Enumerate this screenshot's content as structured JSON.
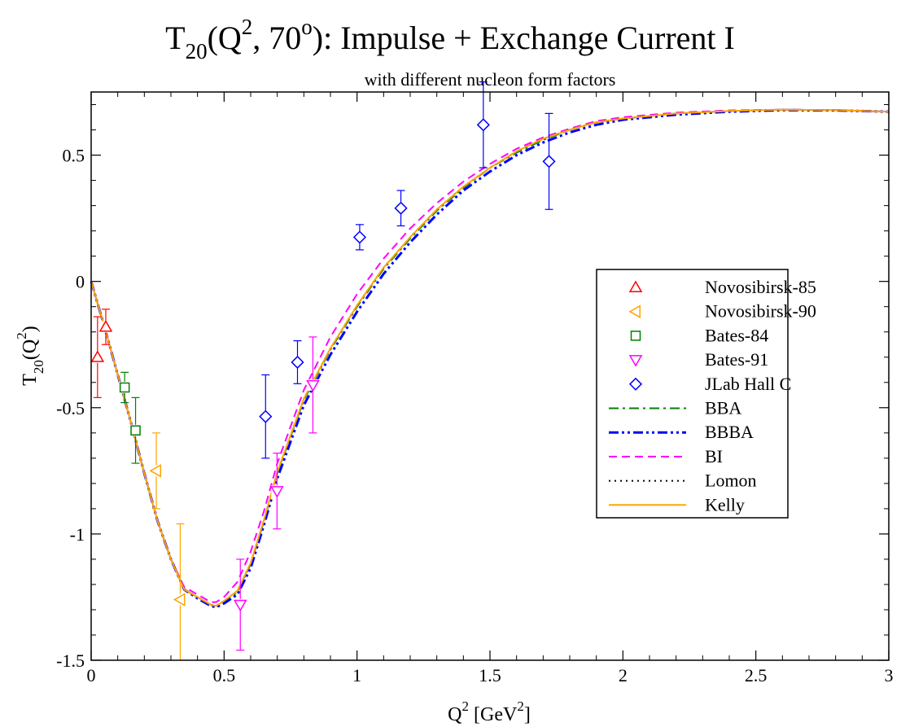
{
  "chart_data": {
    "type": "scatter",
    "title": {
      "main": "T",
      "main_sub": "20",
      "open": "(Q",
      "q_sup": "2",
      "mid": ", 70",
      "deg_sup": "o",
      "rest": "): Impulse + Exchange Current I"
    },
    "subtitle": "with different nucleon form factors",
    "xlabel": {
      "main": "Q",
      "sup": "2",
      "rest": " [GeV",
      "sup2": "2",
      "end": "]"
    },
    "ylabel": {
      "main": "T",
      "sub": "20",
      "rest": "(Q",
      "sup": "2",
      "end": ")"
    },
    "xlim": [
      0,
      3
    ],
    "ylim": [
      -1.5,
      0.75
    ],
    "xticks": [
      "0",
      "0.5",
      "1",
      "1.5",
      "2",
      "2.5",
      "3"
    ],
    "xtick_values": [
      0,
      0.5,
      1,
      1.5,
      2,
      2.5,
      3
    ],
    "yticks": [
      "-1.5",
      "-1",
      "-0.5",
      "0",
      "0.5"
    ],
    "ytick_values": [
      -1.5,
      -1,
      -0.5,
      0,
      0.5
    ],
    "grid": false,
    "legend_position": "right",
    "data_series": [
      {
        "name": "Novosibirsk-85",
        "marker": "triangle-up",
        "color": "#ff0000",
        "points": [
          [
            0.024,
            -0.3,
            0.16
          ],
          [
            0.055,
            -0.18,
            0.07
          ]
        ]
      },
      {
        "name": "Novosibirsk-90",
        "marker": "triangle-left",
        "color": "#ffa500",
        "points": [
          [
            0.245,
            -0.75,
            0.15
          ],
          [
            0.335,
            -1.26,
            0.3
          ]
        ]
      },
      {
        "name": "Bates-84",
        "marker": "square",
        "color": "#008000",
        "points": [
          [
            0.126,
            -0.42,
            0.06
          ],
          [
            0.167,
            -0.59,
            0.13
          ]
        ]
      },
      {
        "name": "Bates-91",
        "marker": "triangle-down",
        "color": "#ff00ff",
        "points": [
          [
            0.561,
            -1.28,
            0.18
          ],
          [
            0.699,
            -0.83,
            0.15
          ],
          [
            0.834,
            -0.41,
            0.19
          ]
        ]
      },
      {
        "name": "JLab Hall C",
        "marker": "diamond",
        "color": "#0000ff",
        "points": [
          [
            0.656,
            -0.535,
            0.165
          ],
          [
            0.776,
            -0.32,
            0.085
          ],
          [
            1.01,
            0.175,
            0.05
          ],
          [
            1.165,
            0.29,
            0.07
          ],
          [
            1.475,
            0.62,
            0.17
          ],
          [
            1.722,
            0.475,
            0.19
          ]
        ]
      }
    ],
    "curve_series": [
      {
        "name": "BBA",
        "style": "dash-dot",
        "color": "#008000",
        "width": 2,
        "x": [
          0,
          0.05,
          0.1,
          0.15,
          0.2,
          0.25,
          0.3,
          0.35,
          0.4,
          0.45,
          0.47,
          0.5,
          0.55,
          0.6,
          0.65,
          0.7,
          0.8,
          0.9,
          1.0,
          1.1,
          1.2,
          1.3,
          1.4,
          1.5,
          1.6,
          1.7,
          1.8,
          1.9,
          2.0,
          2.2,
          2.4,
          2.6,
          2.8,
          3.0
        ],
        "y": [
          0,
          -0.18,
          -0.37,
          -0.56,
          -0.76,
          -0.95,
          -1.1,
          -1.22,
          -1.25,
          -1.28,
          -1.29,
          -1.27,
          -1.23,
          -1.12,
          -0.95,
          -0.76,
          -0.47,
          -0.27,
          -0.1,
          0.05,
          0.17,
          0.28,
          0.37,
          0.45,
          0.51,
          0.56,
          0.6,
          0.63,
          0.645,
          0.665,
          0.675,
          0.68,
          0.678,
          0.672
        ]
      },
      {
        "name": "BBBA",
        "style": "dash-dot-dot",
        "color": "#0000ff",
        "width": 3,
        "x": [
          0,
          0.05,
          0.1,
          0.15,
          0.2,
          0.25,
          0.3,
          0.35,
          0.4,
          0.45,
          0.47,
          0.5,
          0.55,
          0.6,
          0.65,
          0.7,
          0.8,
          0.9,
          1.0,
          1.1,
          1.2,
          1.3,
          1.4,
          1.5,
          1.6,
          1.7,
          1.8,
          1.9,
          2.0,
          2.2,
          2.4,
          2.6,
          2.8,
          3.0
        ],
        "y": [
          0,
          -0.18,
          -0.37,
          -0.56,
          -0.76,
          -0.95,
          -1.1,
          -1.22,
          -1.255,
          -1.285,
          -1.29,
          -1.275,
          -1.24,
          -1.135,
          -0.965,
          -0.78,
          -0.49,
          -0.29,
          -0.12,
          0.03,
          0.155,
          0.265,
          0.36,
          0.435,
          0.5,
          0.55,
          0.59,
          0.62,
          0.64,
          0.66,
          0.672,
          0.678,
          0.677,
          0.672
        ]
      },
      {
        "name": "BI",
        "style": "dash",
        "color": "#ff00ff",
        "width": 2,
        "x": [
          0,
          0.05,
          0.1,
          0.15,
          0.2,
          0.25,
          0.3,
          0.35,
          0.4,
          0.45,
          0.47,
          0.5,
          0.55,
          0.6,
          0.65,
          0.7,
          0.8,
          0.9,
          1.0,
          1.1,
          1.2,
          1.3,
          1.4,
          1.5,
          1.6,
          1.7,
          1.8,
          1.9,
          2.0,
          2.2,
          2.4,
          2.6,
          2.8,
          3.0
        ],
        "y": [
          0,
          -0.18,
          -0.37,
          -0.56,
          -0.76,
          -0.95,
          -1.1,
          -1.21,
          -1.24,
          -1.27,
          -1.27,
          -1.25,
          -1.19,
          -1.07,
          -0.91,
          -0.72,
          -0.43,
          -0.22,
          -0.05,
          0.09,
          0.21,
          0.31,
          0.395,
          0.465,
          0.525,
          0.57,
          0.605,
          0.635,
          0.65,
          0.668,
          0.677,
          0.68,
          0.678,
          0.672
        ]
      },
      {
        "name": "Lomon",
        "style": "dot",
        "color": "#000000",
        "width": 2,
        "x": [
          0,
          0.05,
          0.1,
          0.15,
          0.2,
          0.25,
          0.3,
          0.35,
          0.4,
          0.45,
          0.47,
          0.5,
          0.55,
          0.6,
          0.65,
          0.7,
          0.8,
          0.9,
          1.0,
          1.1,
          1.2,
          1.3,
          1.4,
          1.5,
          1.6,
          1.7,
          1.8,
          1.9,
          2.0,
          2.2,
          2.4,
          2.6,
          2.8,
          3.0
        ],
        "y": [
          0,
          -0.18,
          -0.37,
          -0.56,
          -0.76,
          -0.95,
          -1.1,
          -1.22,
          -1.25,
          -1.28,
          -1.285,
          -1.265,
          -1.225,
          -1.115,
          -0.945,
          -0.755,
          -0.465,
          -0.265,
          -0.095,
          0.055,
          0.175,
          0.285,
          0.375,
          0.45,
          0.515,
          0.565,
          0.6,
          0.63,
          0.645,
          0.665,
          0.675,
          0.68,
          0.678,
          0.672
        ]
      },
      {
        "name": "Kelly",
        "style": "solid",
        "color": "#ffa500",
        "width": 2,
        "x": [
          0,
          0.05,
          0.1,
          0.15,
          0.2,
          0.25,
          0.3,
          0.35,
          0.4,
          0.45,
          0.47,
          0.5,
          0.55,
          0.6,
          0.65,
          0.7,
          0.8,
          0.9,
          1.0,
          1.1,
          1.2,
          1.3,
          1.4,
          1.5,
          1.6,
          1.7,
          1.8,
          1.9,
          2.0,
          2.2,
          2.4,
          2.6,
          2.8,
          3.0
        ],
        "y": [
          0,
          -0.18,
          -0.37,
          -0.56,
          -0.76,
          -0.95,
          -1.1,
          -1.22,
          -1.25,
          -1.28,
          -1.285,
          -1.265,
          -1.225,
          -1.115,
          -0.945,
          -0.755,
          -0.465,
          -0.265,
          -0.095,
          0.055,
          0.175,
          0.285,
          0.375,
          0.45,
          0.515,
          0.565,
          0.6,
          0.63,
          0.645,
          0.665,
          0.675,
          0.68,
          0.678,
          0.672
        ]
      }
    ]
  }
}
